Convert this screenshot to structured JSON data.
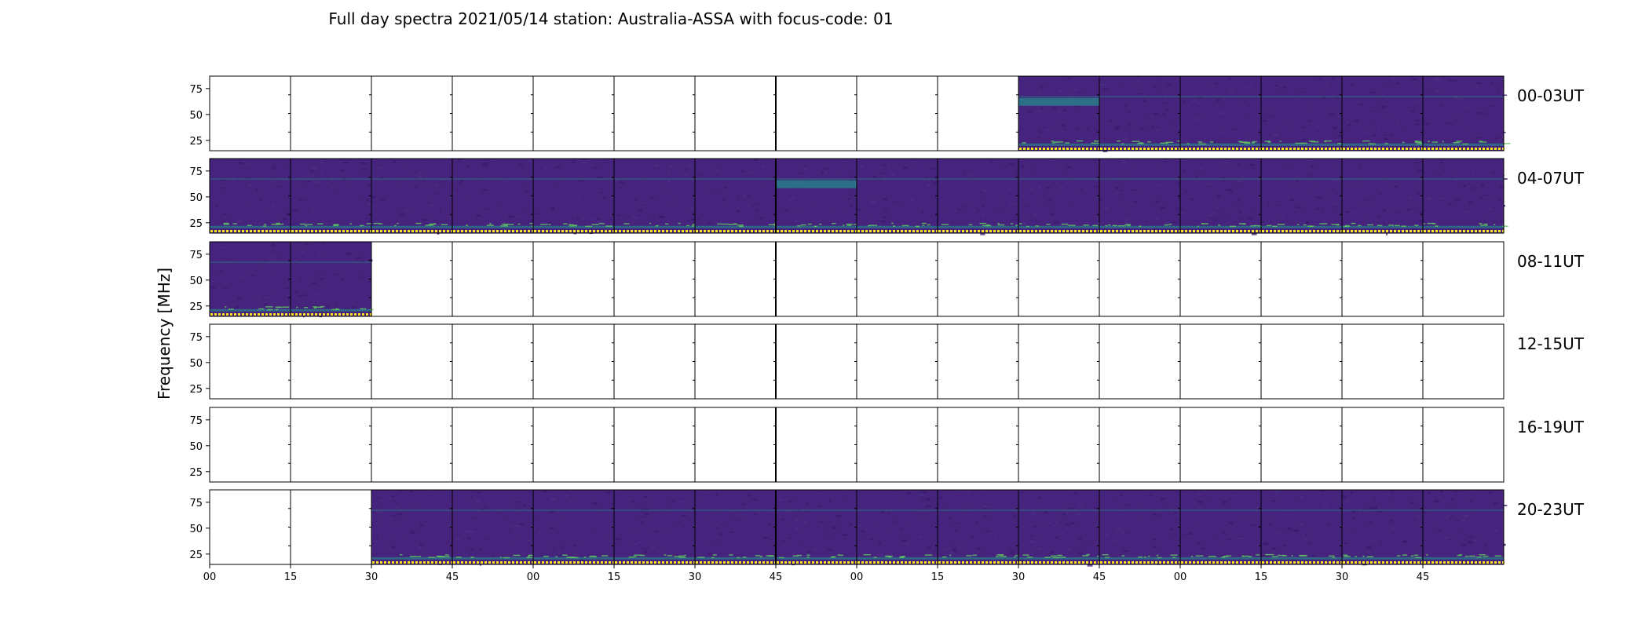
{
  "chart_data": {
    "type": "heatmap",
    "title": "Full day spectra 2021/05/14 station: Australia-ASSA with focus-code: 01",
    "ylabel": "Frequency [MHz]",
    "y_ticks": [
      "75",
      "50",
      "25"
    ],
    "y_tick_values": [
      75,
      50,
      25
    ],
    "ylim": [
      15,
      87
    ],
    "x_ticks": [
      "00",
      "15",
      "30",
      "45",
      "00",
      "15",
      "30",
      "45",
      "00",
      "15",
      "30",
      "45",
      "00",
      "15",
      "30",
      "45"
    ],
    "rows": [
      {
        "label": "00-03UT",
        "filled": [
          false,
          false,
          false,
          false,
          false,
          false,
          false,
          false,
          false,
          false,
          true,
          true,
          true,
          true,
          true,
          true
        ]
      },
      {
        "label": "04-07UT",
        "filled": [
          true,
          true,
          true,
          true,
          true,
          true,
          true,
          true,
          true,
          true,
          true,
          true,
          true,
          true,
          true,
          true
        ]
      },
      {
        "label": "08-11UT",
        "filled": [
          true,
          true,
          false,
          false,
          false,
          false,
          false,
          false,
          false,
          false,
          false,
          false,
          false,
          false,
          false,
          false
        ]
      },
      {
        "label": "12-15UT",
        "filled": [
          false,
          false,
          false,
          false,
          false,
          false,
          false,
          false,
          false,
          false,
          false,
          false,
          false,
          false,
          false,
          false
        ]
      },
      {
        "label": "16-19UT",
        "filled": [
          false,
          false,
          false,
          false,
          false,
          false,
          false,
          false,
          false,
          false,
          false,
          false,
          false,
          false,
          false,
          false
        ]
      },
      {
        "label": "20-23UT",
        "filled": [
          false,
          false,
          true,
          true,
          true,
          true,
          true,
          true,
          true,
          true,
          true,
          true,
          true,
          true,
          true,
          true
        ]
      }
    ],
    "colors": {
      "background_dark": "#3b1a6b",
      "background_mid": "#46237c",
      "signal": "#21918c",
      "signal_bright": "#5ec962",
      "marker": "#fde725",
      "axis": "#000000"
    }
  }
}
